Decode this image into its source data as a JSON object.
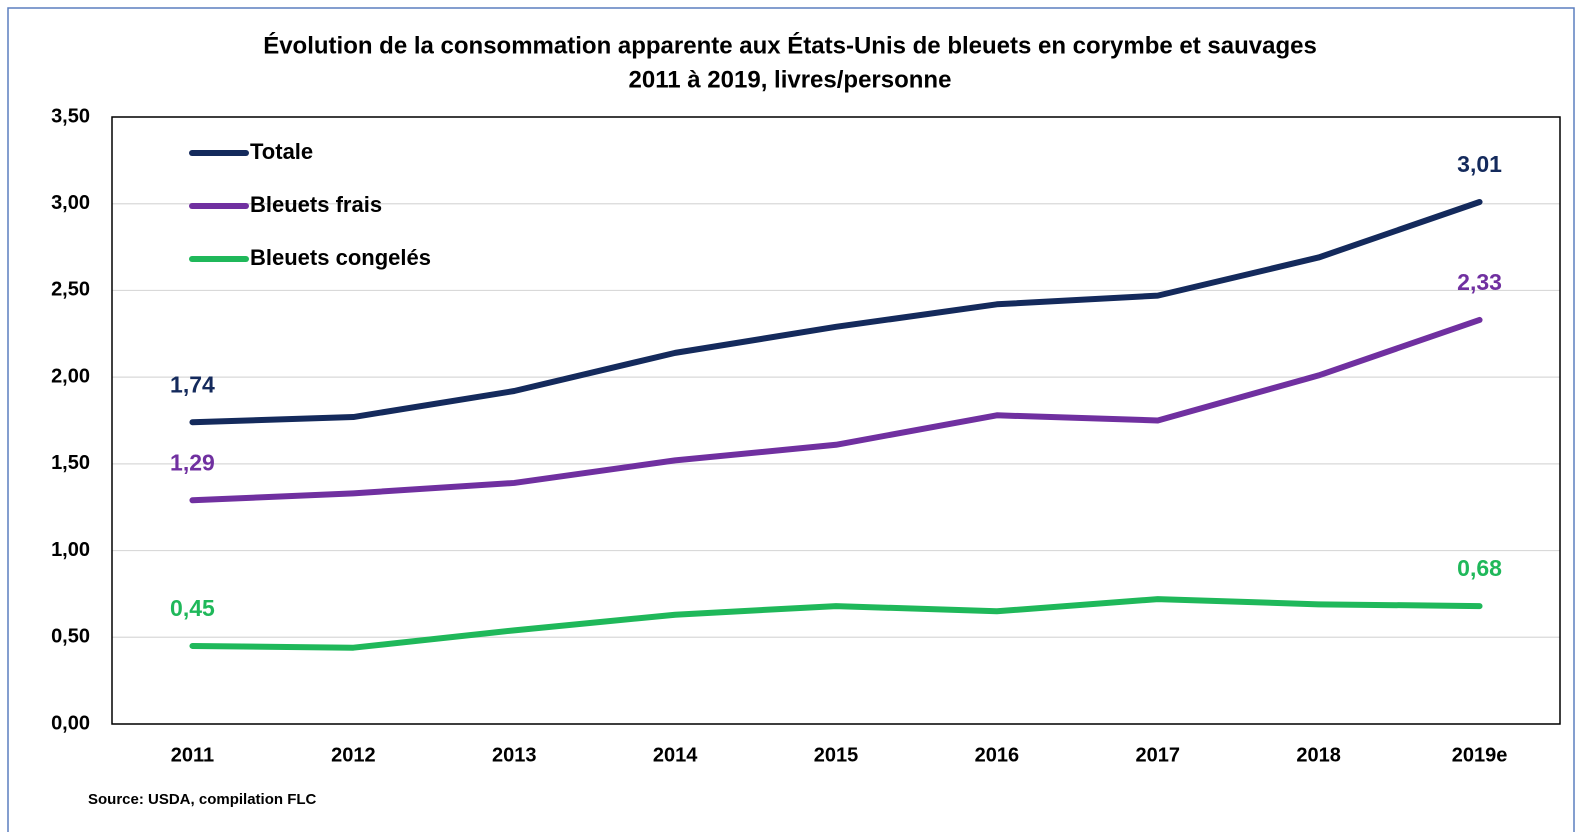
{
  "chart_data": {
    "type": "line",
    "title": "Évolution de la consommation apparente aux États-Unis de bleuets en corymbe et sauvages",
    "subtitle": "2011 à 2019, livres/personne",
    "source": "Source: USDA, compilation FLC",
    "categories": [
      "2011",
      "2012",
      "2013",
      "2014",
      "2015",
      "2016",
      "2017",
      "2018",
      "2019e"
    ],
    "series": [
      {
        "name": "Totale",
        "color": "#142a5c",
        "values": [
          1.74,
          1.77,
          1.92,
          2.14,
          2.29,
          2.42,
          2.47,
          2.69,
          3.01
        ],
        "value_labels": [
          "1,74",
          null,
          null,
          null,
          null,
          null,
          null,
          null,
          "3,01"
        ]
      },
      {
        "name": "Bleuets frais",
        "color": "#7030a0",
        "values": [
          1.29,
          1.33,
          1.39,
          1.52,
          1.61,
          1.78,
          1.75,
          2.01,
          2.33
        ],
        "value_labels": [
          "1,29",
          null,
          null,
          null,
          null,
          null,
          null,
          null,
          "2,33"
        ]
      },
      {
        "name": "Bleuets congelés",
        "color": "#1fb85a",
        "values": [
          0.45,
          0.44,
          0.54,
          0.63,
          0.68,
          0.65,
          0.72,
          0.69,
          0.68
        ],
        "value_labels": [
          "0,45",
          null,
          null,
          null,
          null,
          null,
          null,
          null,
          "0,68"
        ]
      }
    ],
    "ylim": [
      0,
      3.5
    ],
    "yticks": [
      {
        "value": 0,
        "label": "0,00"
      },
      {
        "value": 0.5,
        "label": "0,50"
      },
      {
        "value": 1,
        "label": "1,00"
      },
      {
        "value": 1.5,
        "label": "1,50"
      },
      {
        "value": 2,
        "label": "2,00"
      },
      {
        "value": 2.5,
        "label": "2,50"
      },
      {
        "value": 3,
        "label": "3,00"
      },
      {
        "value": 3.5,
        "label": "3,50"
      }
    ],
    "grid": true,
    "legend": "top-left"
  }
}
